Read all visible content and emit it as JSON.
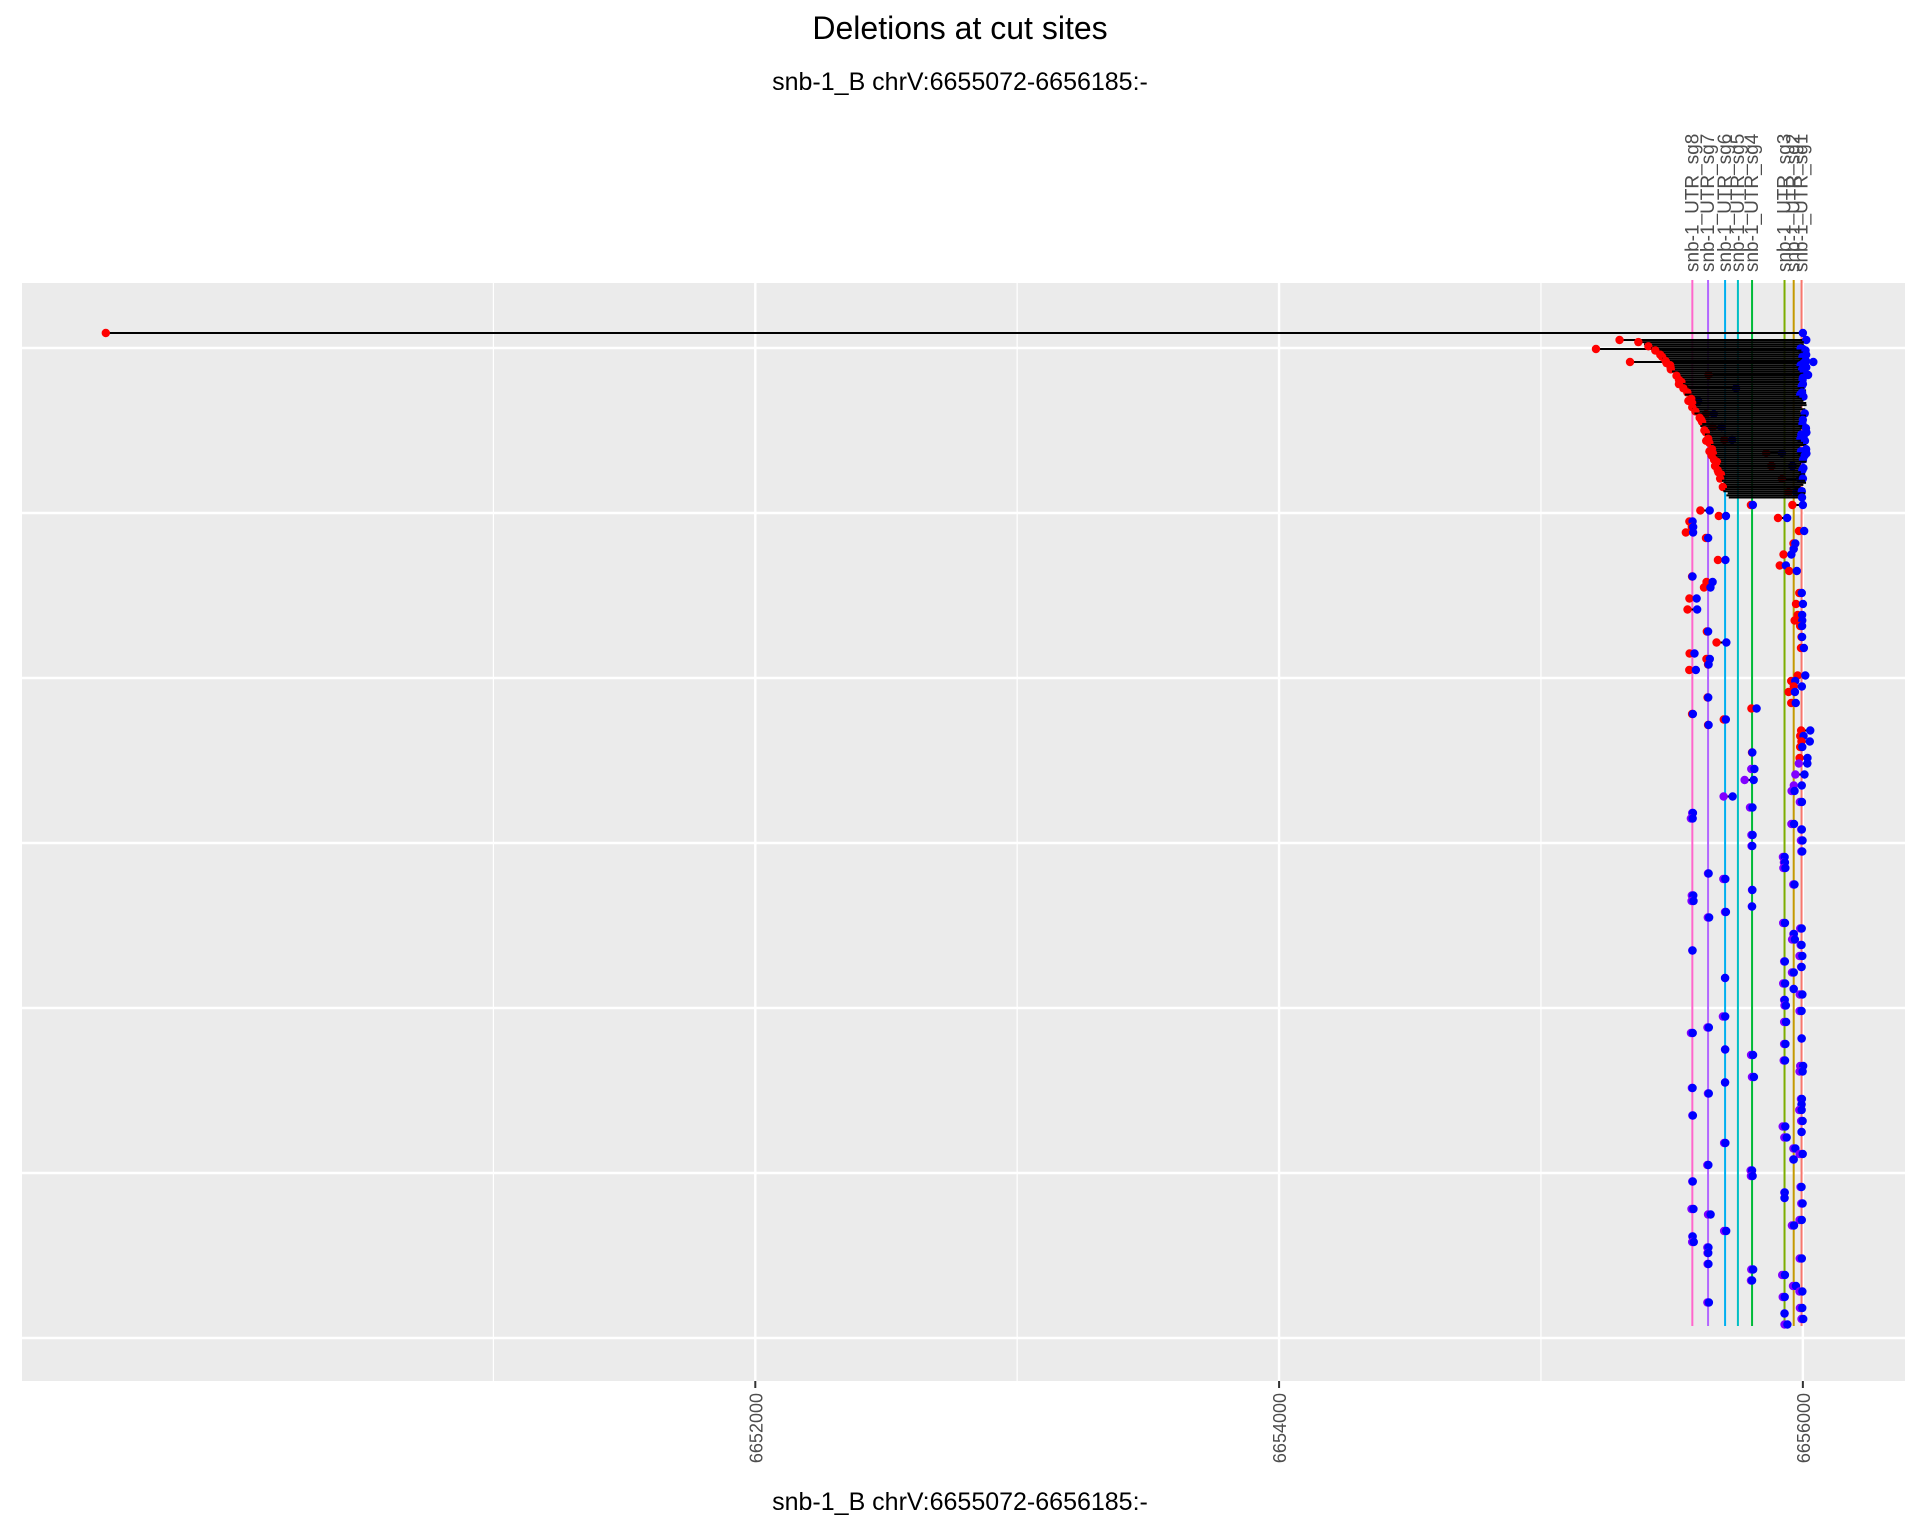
{
  "chart_data": {
    "type": "scatter",
    "title": "Deletions at cut sites",
    "subtitle": "snb-1_B chrV:6655072-6656185:-",
    "xlabel": "snb-1_B chrV:6655072-6656185:-",
    "ylabel": "",
    "xlim": [
      6649200,
      6656390
    ],
    "x_ticks": [
      6652000,
      6654000,
      6656000
    ],
    "x_tick_labels": [
      "6652000",
      "6654000",
      "6656000"
    ],
    "grid": true,
    "legend": "none",
    "colors": {
      "panel": "#ebebeb",
      "grid": "#ffffff",
      "deletion_start": "#ff0000",
      "deletion_end": "#0000ff",
      "segment": "#000000"
    },
    "guides": [
      {
        "label": "snb-1_UTR_sg8",
        "x": 6655578,
        "color": "#ff66cc"
      },
      {
        "label": "snb-1_UTR_sg7",
        "x": 6655638,
        "color": "#b366ff"
      },
      {
        "label": "snb-1_UTR_sg6",
        "x": 6655703,
        "color": "#00b0f0"
      },
      {
        "label": "snb-1_UTR_sg5",
        "x": 6655752,
        "color": "#00bfc4"
      },
      {
        "label": "snb-1_UTR_sg4",
        "x": 6655806,
        "color": "#00ba38"
      },
      {
        "label": "snb-1_UTR_sg3",
        "x": 6655930,
        "color": "#7cae00"
      },
      {
        "label": "snb-1_UTR_sg2",
        "x": 6655965,
        "color": "#c49a00"
      },
      {
        "label": "snb-1_UTR_sg1",
        "x": 6655995,
        "color": "#f8766d"
      }
    ],
    "deletions": [
      [
        6649520,
        6656000
      ],
      [
        6655210,
        6656000
      ],
      [
        6655340,
        6656040
      ],
      [
        6655640,
        6656020
      ],
      [
        6655550,
        6655745
      ],
      [
        6655570,
        6655600
      ],
      [
        6655630,
        6655660
      ],
      [
        6655655,
        6655690
      ],
      [
        6655700,
        6655730
      ],
      [
        6655860,
        6655920
      ],
      [
        6655880,
        6655960
      ],
      [
        6655920,
        6655990
      ],
      [
        6655945,
        6655975
      ],
      [
        6655960,
        6656000
      ],
      [
        6655905,
        6655940
      ],
      [
        6655985,
        6656005
      ]
    ]
  }
}
